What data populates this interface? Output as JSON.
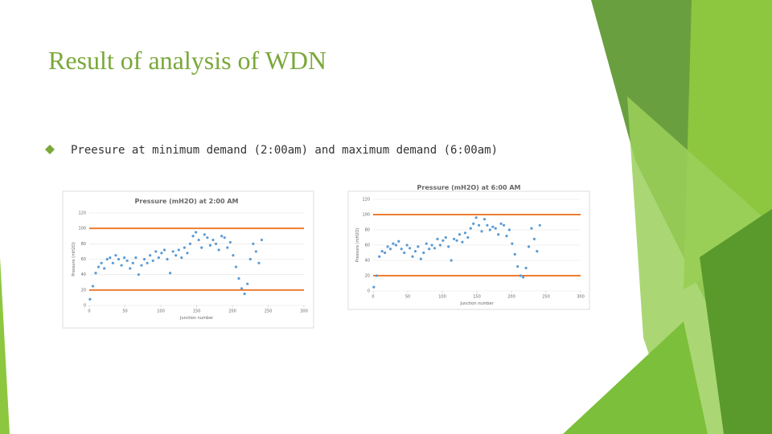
{
  "header": {
    "title": "Result of analysis of WDN"
  },
  "bullets": [
    "Preesure at minimum demand (2:00am) and maximum demand (6:00am)"
  ],
  "chart_data": [
    {
      "type": "scatter",
      "title": "Pressure (mH2O) at 2:00 AM",
      "x_label": "Junction number",
      "y_label": "Pressure (mH2O)",
      "xlim": [
        0,
        300
      ],
      "xticks": [
        0,
        50,
        100,
        150,
        200,
        250,
        300
      ],
      "ylim": [
        0,
        120
      ],
      "yticks": [
        0,
        20,
        40,
        60,
        80,
        100,
        120
      ],
      "grid": true,
      "color": "#5b9bd5",
      "hlines": [
        20,
        100
      ],
      "hline_color": "#ed7d31",
      "x": [
        1,
        5,
        9,
        13,
        17,
        21,
        25,
        29,
        33,
        37,
        41,
        45,
        49,
        53,
        57,
        61,
        65,
        69,
        73,
        77,
        81,
        85,
        89,
        93,
        97,
        101,
        105,
        109,
        113,
        117,
        121,
        125,
        129,
        133,
        137,
        141,
        145,
        149,
        153,
        157,
        161,
        165,
        169,
        173,
        177,
        181,
        185,
        189,
        193,
        197,
        201,
        205,
        209,
        213,
        217,
        221,
        225,
        229,
        233,
        237,
        241
      ],
      "values": [
        8,
        25,
        42,
        50,
        55,
        48,
        60,
        62,
        55,
        65,
        60,
        52,
        62,
        58,
        48,
        55,
        62,
        40,
        52,
        60,
        55,
        65,
        58,
        70,
        62,
        68,
        72,
        60,
        42,
        70,
        65,
        72,
        62,
        75,
        68,
        80,
        90,
        95,
        85,
        75,
        92,
        88,
        78,
        85,
        80,
        72,
        90,
        88,
        75,
        82,
        65,
        50,
        35,
        22,
        15,
        28,
        60,
        80,
        70,
        55,
        85
      ]
    },
    {
      "type": "scatter",
      "title": "Pressure (mH2O) at 6:00 AM",
      "x_label": "Junction number",
      "y_label": "Pressure (mH2O)",
      "xlim": [
        0,
        300
      ],
      "xticks": [
        0,
        50,
        100,
        150,
        200,
        250,
        300
      ],
      "ylim": [
        0,
        120
      ],
      "yticks": [
        0,
        20,
        40,
        60,
        80,
        100,
        120
      ],
      "grid": true,
      "color": "#5b9bd5",
      "hlines": [
        20,
        100
      ],
      "hline_color": "#ed7d31",
      "x": [
        1,
        5,
        9,
        13,
        17,
        21,
        25,
        29,
        33,
        37,
        41,
        45,
        49,
        53,
        57,
        61,
        65,
        69,
        73,
        77,
        81,
        85,
        89,
        93,
        97,
        101,
        105,
        109,
        113,
        117,
        121,
        125,
        129,
        133,
        137,
        141,
        145,
        149,
        153,
        157,
        161,
        165,
        169,
        173,
        177,
        181,
        185,
        189,
        193,
        197,
        201,
        205,
        209,
        213,
        217,
        221,
        225,
        229,
        233,
        237,
        241
      ],
      "values": [
        5,
        20,
        45,
        52,
        50,
        58,
        55,
        62,
        60,
        65,
        55,
        50,
        60,
        56,
        45,
        52,
        58,
        42,
        50,
        62,
        55,
        60,
        56,
        68,
        60,
        66,
        70,
        58,
        40,
        68,
        66,
        74,
        64,
        76,
        70,
        82,
        88,
        96,
        86,
        78,
        94,
        86,
        80,
        84,
        82,
        74,
        88,
        86,
        72,
        80,
        62,
        48,
        32,
        20,
        18,
        30,
        58,
        82,
        68,
        52,
        86
      ]
    }
  ]
}
